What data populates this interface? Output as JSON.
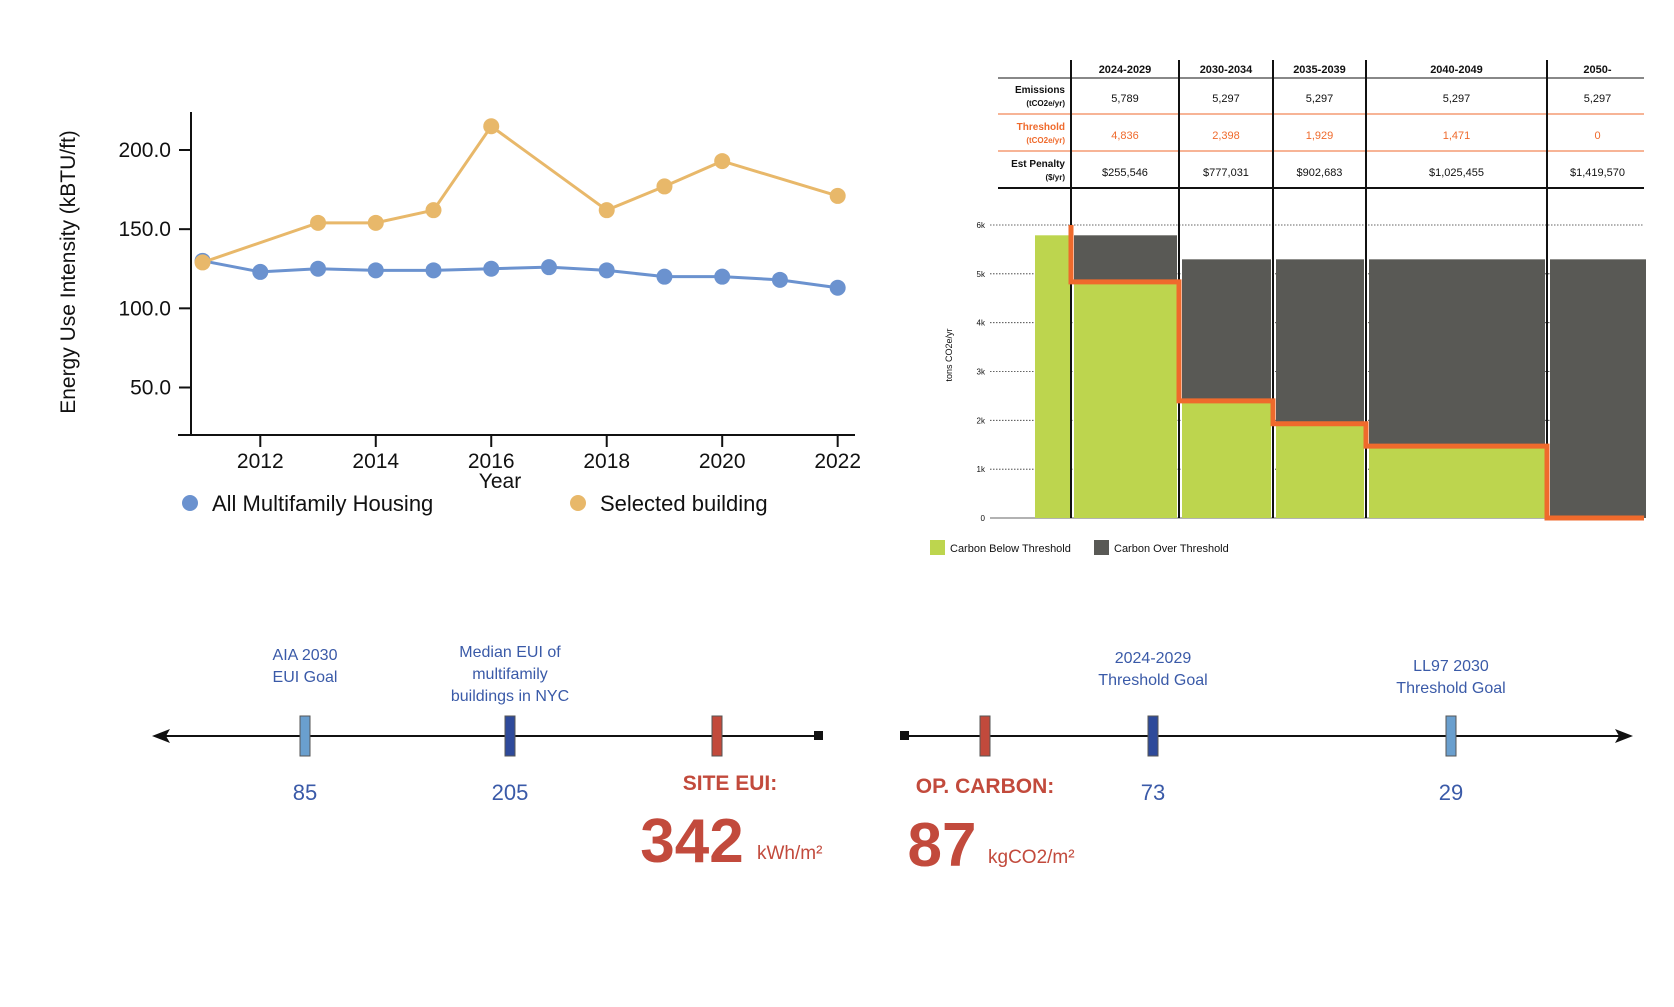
{
  "eui_chart": {
    "chart_data": {
      "type": "line",
      "title": "",
      "xlabel": "Year",
      "ylabel": "Energy Use Intensity (kBTU/ft)",
      "xlim": [
        2010.8,
        2022.3
      ],
      "ylim": [
        20,
        224
      ],
      "x_ticks": [
        2012,
        2014,
        2016,
        2018,
        2020,
        2022
      ],
      "y_ticks": [
        50.0,
        100.0,
        150.0,
        200.0
      ],
      "y_tick_labels": [
        "50.0",
        "100.0",
        "150.0",
        "200.0"
      ],
      "legend_position": "bottom",
      "series": [
        {
          "name": "All Multifamily Housing",
          "color": "#6b92cf",
          "x": [
            2011,
            2012,
            2013,
            2014,
            2015,
            2016,
            2017,
            2018,
            2019,
            2020,
            2021,
            2022
          ],
          "y": [
            130,
            123,
            125,
            124,
            124,
            125,
            126,
            124,
            120,
            120,
            118,
            113
          ]
        },
        {
          "name": "Selected building",
          "color": "#e8b86a",
          "x": [
            2011,
            2013,
            2014,
            2015,
            2016,
            2018,
            2019,
            2020,
            2022
          ],
          "y": [
            129,
            154,
            154,
            162,
            215,
            162,
            177,
            193,
            171
          ]
        }
      ]
    }
  },
  "ll97_chart": {
    "table": {
      "periods": [
        "2024-2029",
        "2030-2034",
        "2035-2039",
        "2040-2049",
        "2050-"
      ],
      "rows": [
        {
          "label": "Emissions",
          "unit": "(tCO2e/yr)",
          "values": [
            "5,789",
            "5,297",
            "5,297",
            "5,297",
            "5,297"
          ],
          "highlight": false
        },
        {
          "label": "Threshold",
          "unit": "(tCO2e/yr)",
          "values": [
            "4,836",
            "2,398",
            "1,929",
            "1,471",
            "0"
          ],
          "highlight": true
        },
        {
          "label": "Est Penalty",
          "unit": "($/yr)",
          "values": [
            "$255,546",
            "$777,031",
            "$902,683",
            "$1,025,455",
            "$1,419,570"
          ],
          "highlight": false
        }
      ]
    },
    "chart_data": {
      "type": "bar",
      "ylabel": "tons CO2e/yr",
      "ylim": [
        0,
        6000
      ],
      "y_ticks": [
        0,
        1000,
        2000,
        3000,
        4000,
        5000,
        6000
      ],
      "y_tick_labels": [
        "0",
        "1k",
        "2k",
        "3k",
        "4k",
        "5k",
        "6k"
      ],
      "categories": [
        "2024-2029",
        "2030-2034",
        "2035-2039",
        "2040-2049",
        "2050-"
      ],
      "emissions": [
        5789,
        5297,
        5297,
        5297,
        5297
      ],
      "threshold": [
        4836,
        2398,
        1929,
        1471,
        0
      ],
      "legend_position": "bottom-left",
      "series": [
        {
          "name": "Carbon Below Threshold",
          "color": "#bdd54e"
        },
        {
          "name": "Carbon Over Threshold",
          "color": "#595955"
        }
      ],
      "threshold_color": "#ef6a2c"
    }
  },
  "eui_scale": {
    "markers": [
      {
        "label_lines": [
          "AIA 2030",
          "EUI Goal"
        ],
        "value": "85",
        "color": "#6a9fce"
      },
      {
        "label_lines": [
          "Median EUI of",
          "multifamily",
          "buildings in NYC"
        ],
        "value": "205",
        "color": "#2e4a9a"
      },
      {
        "label_lines": [],
        "value": "",
        "color": "#c24a3c"
      }
    ],
    "site_label": "SITE EUI:",
    "site_value": "342",
    "site_unit": "kWh/m²"
  },
  "carbon_scale": {
    "markers": [
      {
        "label_lines": [],
        "value": "",
        "color": "#c24a3c"
      },
      {
        "label_lines": [
          "2024-2029",
          "Threshold Goal"
        ],
        "value": "73",
        "color": "#2e4a9a"
      },
      {
        "label_lines": [
          "LL97 2030",
          "Threshold Goal"
        ],
        "value": "29",
        "color": "#6a9fce"
      }
    ],
    "op_label": "OP. CARBON:",
    "op_value": "87",
    "op_unit": "kgCO2/m²"
  }
}
